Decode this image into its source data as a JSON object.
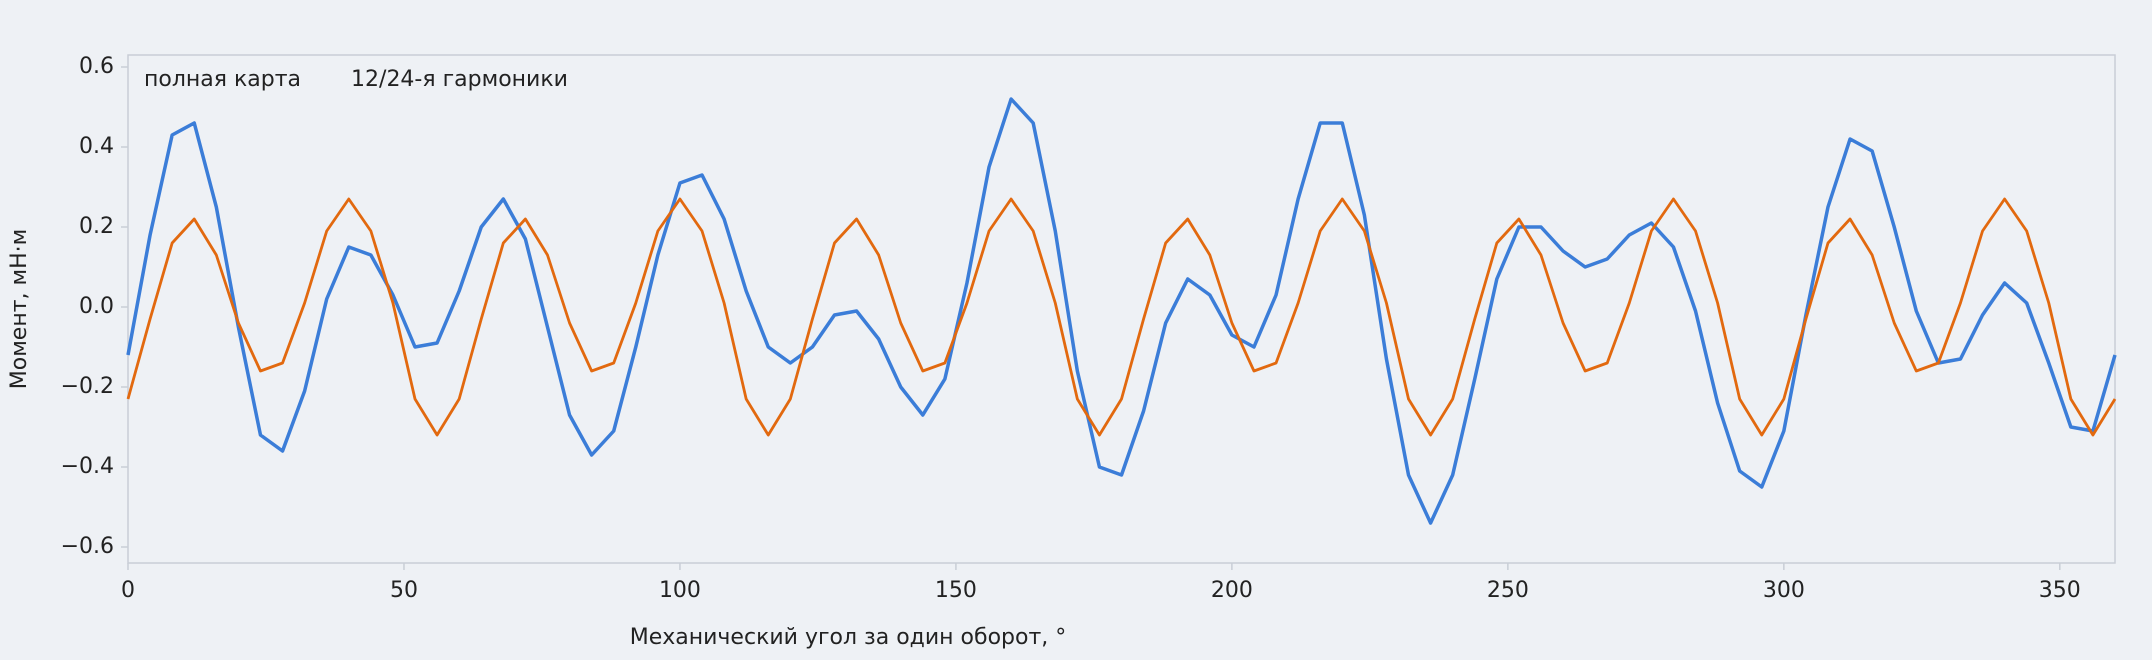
{
  "chart_data": {
    "type": "line",
    "xlabel": "Механический угол за один оборот, °",
    "ylabel": "Момент, мН·м",
    "x": [
      0,
      4,
      8,
      12,
      16,
      20,
      24,
      28,
      32,
      36,
      40,
      44,
      48,
      52,
      56,
      60,
      64,
      68,
      72,
      76,
      80,
      84,
      88,
      92,
      96,
      100,
      104,
      108,
      112,
      116,
      120,
      124,
      128,
      132,
      136,
      140,
      144,
      148,
      152,
      156,
      160,
      164,
      168,
      172,
      176,
      180,
      184,
      188,
      192,
      196,
      200,
      204,
      208,
      212,
      216,
      220,
      224,
      228,
      232,
      236,
      240,
      244,
      248,
      252,
      256,
      260,
      264,
      268,
      272,
      276,
      280,
      284,
      288,
      292,
      296,
      300,
      304,
      308,
      312,
      316,
      320,
      324,
      328,
      332,
      336,
      340,
      344,
      348,
      352,
      356,
      360
    ],
    "series": [
      {
        "name": "полная карта",
        "color": "#3b7dd8",
        "values": [
          -0.12,
          0.18,
          0.43,
          0.46,
          0.25,
          -0.05,
          -0.32,
          -0.36,
          -0.21,
          0.02,
          0.15,
          0.13,
          0.03,
          -0.1,
          -0.09,
          0.04,
          0.2,
          0.27,
          0.17,
          -0.05,
          -0.27,
          -0.37,
          -0.31,
          -0.1,
          0.13,
          0.31,
          0.33,
          0.22,
          0.04,
          -0.1,
          -0.14,
          -0.1,
          -0.02,
          -0.01,
          -0.08,
          -0.2,
          -0.27,
          -0.18,
          0.06,
          0.35,
          0.52,
          0.46,
          0.19,
          -0.16,
          -0.4,
          -0.42,
          -0.26,
          -0.04,
          0.07,
          0.03,
          -0.07,
          -0.1,
          0.03,
          0.27,
          0.46,
          0.46,
          0.23,
          -0.13,
          -0.42,
          -0.54,
          -0.42,
          -0.18,
          0.07,
          0.2,
          0.2,
          0.14,
          0.1,
          0.12,
          0.18,
          0.21,
          0.15,
          -0.01,
          -0.24,
          -0.41,
          -0.45,
          -0.31,
          -0.02,
          0.25,
          0.42,
          0.39,
          0.2,
          -0.01,
          -0.14,
          -0.13,
          -0.02,
          0.06,
          0.01,
          -0.14,
          -0.3,
          -0.31,
          -0.12
        ]
      },
      {
        "name": "12/24-я гармоники",
        "color": "#e2690f",
        "values": [
          -0.23,
          -0.03,
          0.16,
          0.22,
          0.13,
          -0.04,
          -0.16,
          -0.14,
          0.01,
          0.19,
          0.27,
          0.19,
          0.01,
          -0.23,
          -0.32,
          -0.23,
          -0.03,
          0.16,
          0.22,
          0.13,
          -0.04,
          -0.16,
          -0.14,
          0.01,
          0.19,
          0.27,
          0.19,
          0.01,
          -0.23,
          -0.32,
          -0.23,
          -0.03,
          0.16,
          0.22,
          0.13,
          -0.04,
          -0.16,
          -0.14,
          0.01,
          0.19,
          0.27,
          0.19,
          0.01,
          -0.23,
          -0.32,
          -0.23,
          -0.03,
          0.16,
          0.22,
          0.13,
          -0.04,
          -0.16,
          -0.14,
          0.01,
          0.19,
          0.27,
          0.19,
          0.01,
          -0.23,
          -0.32,
          -0.23,
          -0.03,
          0.16,
          0.22,
          0.13,
          -0.04,
          -0.16,
          -0.14,
          0.01,
          0.19,
          0.27,
          0.19,
          0.01,
          -0.23,
          -0.32,
          -0.23,
          -0.03,
          0.16,
          0.22,
          0.13,
          -0.04,
          -0.16,
          -0.14,
          0.01,
          0.19,
          0.27,
          0.19,
          0.01,
          -0.23,
          -0.32,
          -0.23
        ]
      }
    ],
    "xlim": [
      0,
      360
    ],
    "xticks": [
      0,
      50,
      100,
      150,
      200,
      250,
      300,
      350
    ],
    "ylim": [
      -0.64,
      0.63
    ],
    "yticks": [
      {
        "value": -0.6,
        "label": "−0.6"
      },
      {
        "value": -0.4,
        "label": "−0.4"
      },
      {
        "value": -0.2,
        "label": "−0.2"
      },
      {
        "value": 0,
        "label": "0.0"
      },
      0.2,
      0.4,
      0.6
    ],
    "legend": "upper left"
  }
}
